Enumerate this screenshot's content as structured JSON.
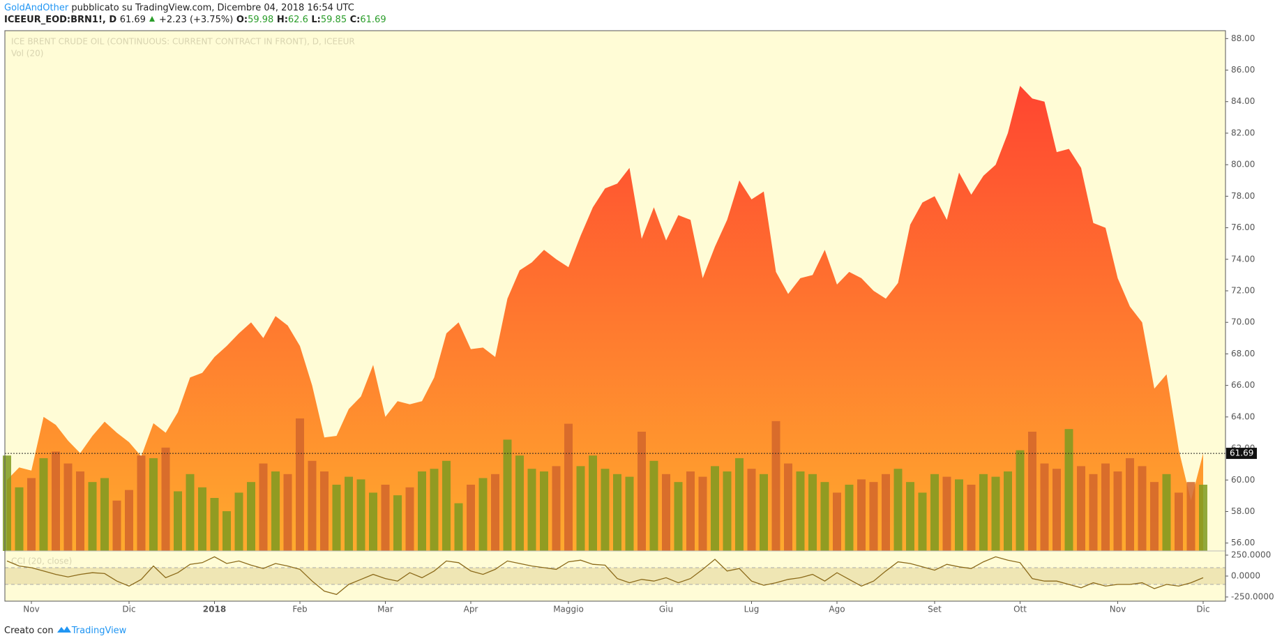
{
  "header": {
    "author": "GoldAndOther",
    "published": "pubblicato su TradingView.com, Dicembre 04, 2018 16:54 UTC"
  },
  "legend": {
    "symbol": "ICEEUR_EOD:BRN1!, D",
    "price": 61.69,
    "change": "+2.23 (+3.75%)",
    "ohlc": [
      {
        "key": "O:",
        "value": 59.98
      },
      {
        "key": "H:",
        "value": 62.6
      },
      {
        "key": "L:",
        "value": 59.85
      },
      {
        "key": "C:",
        "value": 61.69
      }
    ]
  },
  "footer": {
    "text": "Creato con",
    "brand": "TradingView"
  },
  "chart_data": {
    "type": "area",
    "title": "ICE BRENT CRUDE OIL (CONTINUOUS: CURRENT CONTRACT IN FRONT), D, ICEEUR",
    "categories": [
      null,
      null,
      "Nov",
      null,
      null,
      null,
      null,
      null,
      null,
      null,
      "Dic",
      null,
      null,
      null,
      null,
      null,
      null,
      "2018",
      null,
      null,
      null,
      null,
      null,
      null,
      "Feb",
      null,
      null,
      null,
      null,
      null,
      null,
      "Mar",
      null,
      null,
      null,
      null,
      null,
      null,
      "Apr",
      null,
      null,
      null,
      null,
      null,
      null,
      null,
      "Maggio",
      null,
      null,
      null,
      null,
      null,
      null,
      null,
      "Giu",
      null,
      null,
      null,
      null,
      null,
      null,
      "Lug",
      null,
      null,
      null,
      null,
      null,
      null,
      "Ago",
      null,
      null,
      null,
      null,
      null,
      null,
      null,
      "Set",
      null,
      null,
      null,
      null,
      null,
      null,
      "Ott",
      null,
      null,
      null,
      null,
      null,
      null,
      null,
      "Nov",
      null,
      null,
      null,
      null,
      null,
      null,
      "Dic"
    ],
    "values": [
      60.0,
      60.8,
      60.6,
      64.0,
      63.5,
      62.5,
      61.7,
      62.8,
      63.7,
      63.0,
      62.4,
      61.5,
      63.6,
      63.0,
      64.3,
      66.5,
      66.8,
      67.8,
      68.5,
      69.3,
      70.0,
      69.0,
      70.4,
      69.8,
      68.5,
      66.0,
      62.7,
      62.8,
      64.5,
      65.3,
      67.3,
      64.0,
      65.0,
      64.8,
      65.0,
      66.5,
      69.3,
      70.0,
      68.3,
      68.4,
      67.8,
      71.5,
      73.3,
      73.8,
      74.6,
      74.0,
      73.5,
      75.5,
      77.3,
      78.5,
      78.8,
      79.8,
      75.3,
      77.3,
      75.2,
      76.8,
      76.5,
      72.8,
      74.8,
      76.5,
      79.0,
      77.8,
      78.3,
      73.2,
      71.8,
      72.8,
      73.0,
      74.6,
      72.4,
      73.2,
      72.8,
      72.0,
      71.5,
      72.5,
      76.2,
      77.6,
      78.0,
      76.5,
      79.5,
      78.1,
      79.3,
      80.0,
      82.0,
      85.0,
      84.2,
      84.0,
      80.8,
      81.0,
      79.8,
      76.3,
      76.0,
      72.8,
      71.0,
      70.0,
      65.8,
      66.7,
      61.9,
      58.7,
      61.69
    ],
    "ylim": [
      55.5,
      88.5
    ],
    "yticks": [
      {
        "value": 56,
        "label": "56.00"
      },
      {
        "value": 58,
        "label": "58.00"
      },
      {
        "value": 60,
        "label": "60.00"
      },
      {
        "value": 62,
        "label": "62.00"
      },
      {
        "value": 64,
        "label": "64.00"
      },
      {
        "value": 66,
        "label": "66.00"
      },
      {
        "value": 68,
        "label": "68.00"
      },
      {
        "value": 70,
        "label": "70.00"
      },
      {
        "value": 72,
        "label": "72.00"
      },
      {
        "value": 74,
        "label": "74.00"
      },
      {
        "value": 76,
        "label": "76.00"
      },
      {
        "value": 78,
        "label": "78.00"
      },
      {
        "value": 80,
        "label": "80.00"
      },
      {
        "value": 82,
        "label": "82.00"
      },
      {
        "value": 84,
        "label": "84.00"
      },
      {
        "value": 86,
        "label": "86.00"
      },
      {
        "value": 88,
        "label": "88.00"
      }
    ],
    "colors": {
      "area_top": "#ff4530",
      "area_bottom": "#ffab2e",
      "volume_up": "#7e9a20",
      "volume_down": "#d2652a",
      "cci": "#8b6a1a",
      "background": "#fffcd6"
    },
    "volume": {
      "label": "Vol (20)",
      "values": [
        72,
        48,
        55,
        70,
        75,
        66,
        60,
        52,
        55,
        38,
        46,
        72,
        70,
        78,
        45,
        58,
        48,
        40,
        30,
        44,
        52,
        66,
        60,
        58,
        100,
        68,
        60,
        50,
        56,
        54,
        44,
        50,
        42,
        48,
        60,
        62,
        68,
        36,
        50,
        55,
        58,
        84,
        72,
        62,
        60,
        64,
        96,
        64,
        72,
        62,
        58,
        56,
        90,
        68,
        58,
        52,
        60,
        56,
        64,
        60,
        70,
        62,
        58,
        98,
        66,
        60,
        58,
        52,
        44,
        50,
        54,
        52,
        58,
        62,
        52,
        44,
        58,
        56,
        54,
        50,
        58,
        56,
        60,
        76,
        90,
        66,
        62,
        92,
        64,
        58,
        66,
        60,
        70,
        64,
        52,
        58,
        44,
        52,
        50
      ]
    },
    "cci": {
      "label": "CCI (20, close)",
      "values": [
        180,
        120,
        100,
        60,
        20,
        -10,
        20,
        40,
        30,
        -60,
        -120,
        -40,
        120,
        -20,
        40,
        140,
        160,
        230,
        150,
        180,
        130,
        90,
        150,
        120,
        80,
        -60,
        -180,
        -220,
        -100,
        -40,
        20,
        -30,
        -60,
        40,
        -20,
        60,
        180,
        160,
        60,
        20,
        80,
        180,
        150,
        120,
        100,
        80,
        170,
        190,
        140,
        130,
        -30,
        -80,
        -40,
        -60,
        -20,
        -80,
        -30,
        80,
        200,
        60,
        90,
        -60,
        -110,
        -80,
        -40,
        -20,
        20,
        -60,
        40,
        -40,
        -120,
        -60,
        60,
        170,
        150,
        110,
        70,
        140,
        110,
        90,
        170,
        230,
        190,
        160,
        -30,
        -60,
        -60,
        -100,
        -140,
        -80,
        -120,
        -100,
        -100,
        -80,
        -150,
        -100,
        -120,
        -80,
        -20
      ],
      "ylim": [
        -300,
        300
      ],
      "yticks": [
        {
          "value": 250,
          "label": "250.0000"
        },
        {
          "value": 0,
          "label": "0.0000"
        },
        {
          "value": -250,
          "label": "-250.0000"
        }
      ],
      "levels": [
        100,
        -100
      ]
    }
  }
}
